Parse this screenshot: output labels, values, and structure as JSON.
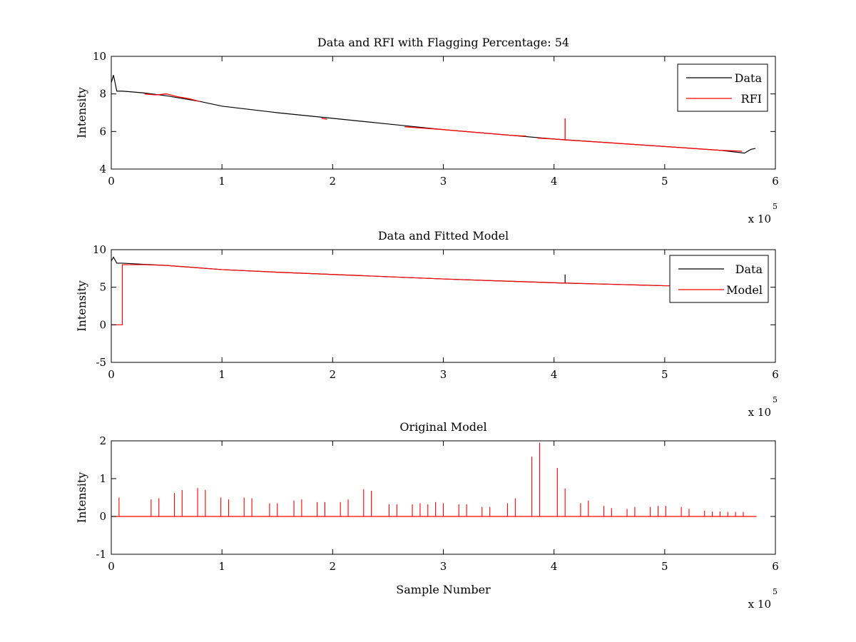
{
  "chart_data": [
    {
      "type": "line",
      "title": "Data and RFI with Flagging Percentage: 54",
      "xlabel": "",
      "ylabel": "Intensity",
      "xlim": [
        0,
        6
      ],
      "ylim": [
        4,
        10
      ],
      "xticks": [
        "0",
        "1",
        "2",
        "3",
        "4",
        "5",
        "6"
      ],
      "yticks": [
        "4",
        "6",
        "8",
        "10"
      ],
      "x_exponent": {
        "base": "x 10",
        "power": "5"
      },
      "legend": {
        "position": "top-right",
        "entries": [
          "Data",
          "RFI"
        ]
      },
      "colors": {
        "Data": "#000000",
        "RFI": "#ff0000"
      },
      "series": [
        {
          "name": "Data",
          "x": [
            0,
            0.02,
            0.05,
            0.1,
            0.2,
            0.3,
            0.5,
            0.8,
            1.0,
            1.5,
            2.0,
            2.5,
            3.0,
            3.5,
            4.0,
            4.5,
            5.0,
            5.5,
            5.72,
            5.78,
            5.82
          ],
          "y": [
            8.6,
            9.0,
            8.15,
            8.15,
            8.1,
            8.05,
            7.9,
            7.6,
            7.35,
            7.0,
            6.7,
            6.4,
            6.1,
            5.85,
            5.6,
            5.4,
            5.2,
            5.0,
            4.85,
            5.05,
            5.1
          ]
        },
        {
          "name": "RFI",
          "segments": [
            {
              "x": [
                0.3,
                0.4,
                0.5,
                0.6,
                0.7,
                0.8
              ],
              "y": [
                8.0,
                7.95,
                8.0,
                7.85,
                7.75,
                7.6
              ]
            },
            {
              "x": [
                1.9,
                1.95
              ],
              "y": [
                6.7,
                6.65
              ]
            },
            {
              "x": [
                2.65,
                3.0,
                3.3,
                3.6,
                3.75
              ],
              "y": [
                6.25,
                6.1,
                5.95,
                5.8,
                5.75
              ]
            },
            {
              "x": [
                3.85,
                4.0,
                4.1,
                4.1,
                4.1,
                4.5,
                5.0,
                5.5,
                5.7
              ],
              "y": [
                5.65,
                5.6,
                5.55,
                6.7,
                5.55,
                5.4,
                5.2,
                5.0,
                4.95
              ]
            }
          ]
        }
      ]
    },
    {
      "type": "line",
      "title": "Data and Fitted Model",
      "xlabel": "",
      "ylabel": "Intensity",
      "xlim": [
        0,
        6
      ],
      "ylim": [
        -5,
        10
      ],
      "xticks": [
        "0",
        "1",
        "2",
        "3",
        "4",
        "5",
        "6"
      ],
      "yticks": [
        "-5",
        "0",
        "5",
        "10"
      ],
      "x_exponent": {
        "base": "x 10",
        "power": "5"
      },
      "legend": {
        "position": "top-right",
        "entries": [
          "Data",
          "Model"
        ]
      },
      "colors": {
        "Data": "#000000",
        "Model": "#ff0000"
      },
      "series": [
        {
          "name": "Data",
          "x": [
            0,
            0.02,
            0.05,
            0.1,
            0.3,
            0.5,
            1.0,
            1.5,
            2.0,
            2.5,
            3.0,
            3.5,
            4.0,
            4.1,
            4.1,
            4.1,
            4.5,
            5.0,
            5.1
          ],
          "y": [
            8.5,
            9.0,
            8.2,
            8.2,
            8.05,
            7.9,
            7.35,
            7.0,
            6.7,
            6.4,
            6.1,
            5.85,
            5.6,
            5.55,
            6.7,
            5.55,
            5.4,
            5.2,
            5.2
          ]
        },
        {
          "name": "Model",
          "x": [
            0,
            0.1,
            0.1,
            0.3,
            0.5,
            1.0,
            1.5,
            2.0,
            2.5,
            3.0,
            3.5,
            4.0,
            4.5,
            5.0,
            5.1
          ],
          "y": [
            0,
            0,
            8.0,
            8.0,
            7.9,
            7.35,
            7.0,
            6.7,
            6.4,
            6.1,
            5.85,
            5.6,
            5.4,
            5.2,
            5.2
          ]
        }
      ]
    },
    {
      "type": "line",
      "title": "Original Model",
      "xlabel": "Sample Number",
      "ylabel": "Intensity",
      "xlim": [
        0,
        6
      ],
      "ylim": [
        -1,
        2
      ],
      "xticks": [
        "0",
        "1",
        "2",
        "3",
        "4",
        "5",
        "6"
      ],
      "yticks": [
        "-1",
        "0",
        "1",
        "2"
      ],
      "x_exponent": {
        "base": "x 10",
        "power": "5"
      },
      "colors": {
        "Model": "#ff0000"
      },
      "series": [
        {
          "name": "",
          "baseline": [
            0,
            5.83
          ],
          "spikes_x": [
            0.07,
            0.36,
            0.43,
            0.57,
            0.64,
            0.78,
            0.85,
            0.99,
            1.06,
            1.2,
            1.27,
            1.43,
            1.5,
            1.65,
            1.72,
            1.86,
            1.93,
            2.07,
            2.14,
            2.28,
            2.35,
            2.51,
            2.58,
            2.72,
            2.79,
            2.86,
            2.93,
            3.0,
            3.14,
            3.21,
            3.35,
            3.42,
            3.58,
            3.65,
            3.8,
            3.87,
            4.03,
            4.1,
            4.24,
            4.31,
            4.45,
            4.52,
            4.66,
            4.73,
            4.87,
            4.94,
            5.01,
            5.15,
            5.22,
            5.36,
            5.43,
            5.5,
            5.57,
            5.64,
            5.71
          ],
          "spikes_y": [
            0.5,
            0.45,
            0.48,
            0.62,
            0.7,
            0.75,
            0.7,
            0.5,
            0.45,
            0.5,
            0.48,
            0.35,
            0.35,
            0.42,
            0.45,
            0.38,
            0.38,
            0.38,
            0.45,
            0.72,
            0.68,
            0.32,
            0.32,
            0.32,
            0.35,
            0.32,
            0.38,
            0.35,
            0.32,
            0.32,
            0.25,
            0.25,
            0.35,
            0.48,
            1.58,
            1.95,
            1.28,
            0.74,
            0.35,
            0.42,
            0.28,
            0.22,
            0.2,
            0.25,
            0.25,
            0.28,
            0.28,
            0.25,
            0.2,
            0.15,
            0.13,
            0.13,
            0.12,
            0.12,
            0.12
          ]
        }
      ]
    }
  ]
}
